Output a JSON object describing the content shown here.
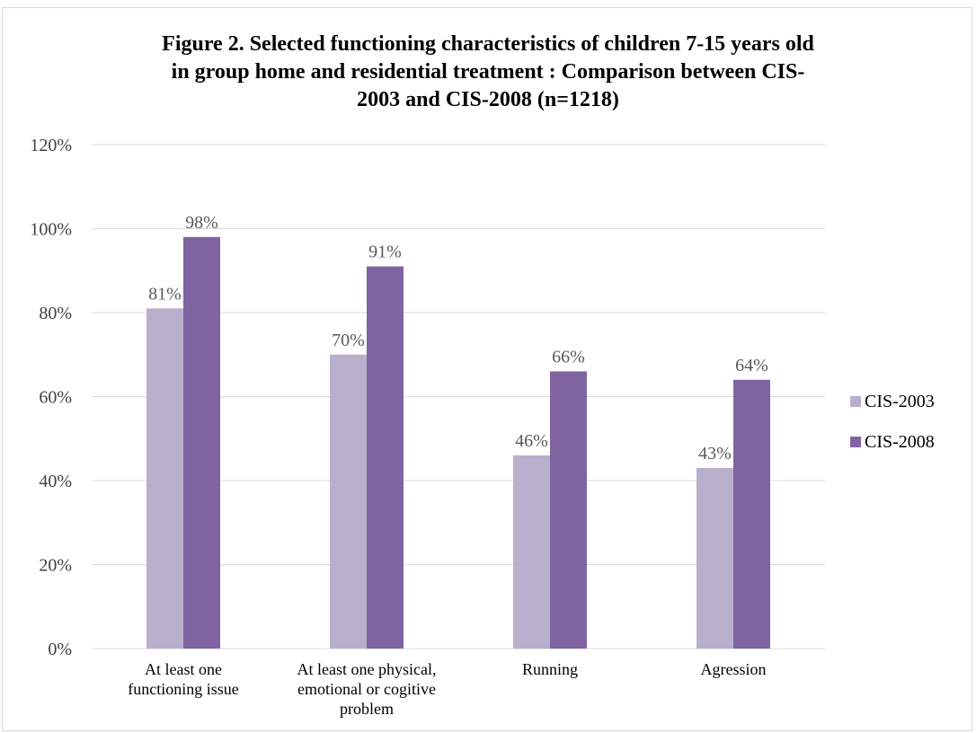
{
  "chart_data": {
    "type": "bar",
    "title_lines": [
      "Figure 2. Selected functioning characteristics of children 7-15 years old",
      "in group home and residential treatment : Comparison between CIS-",
      "2003 and CIS-2008 (n=1218)"
    ],
    "categories": [
      [
        "At least one",
        "functioning issue"
      ],
      [
        "At least one physical,",
        "emotional or cogitive",
        "problem"
      ],
      [
        "Running"
      ],
      [
        "Agression"
      ]
    ],
    "series": [
      {
        "name": "CIS-2003",
        "values": [
          81,
          70,
          46,
          43
        ],
        "labels": [
          "81%",
          "70%",
          "46%",
          "43%"
        ],
        "color": "#b8afcc"
      },
      {
        "name": "CIS-2008",
        "values": [
          98,
          91,
          66,
          64
        ],
        "labels": [
          "98%",
          "91%",
          "66%",
          "64%"
        ],
        "color": "#8064a2"
      }
    ],
    "ylim": [
      0,
      120
    ],
    "yticks": [
      0,
      20,
      40,
      60,
      80,
      100,
      120
    ],
    "ytick_labels": [
      "0%",
      "20%",
      "40%",
      "60%",
      "80%",
      "100%",
      "120%"
    ],
    "grid": true,
    "gridline_color": "#d9d9d9",
    "legend_position": "right"
  }
}
